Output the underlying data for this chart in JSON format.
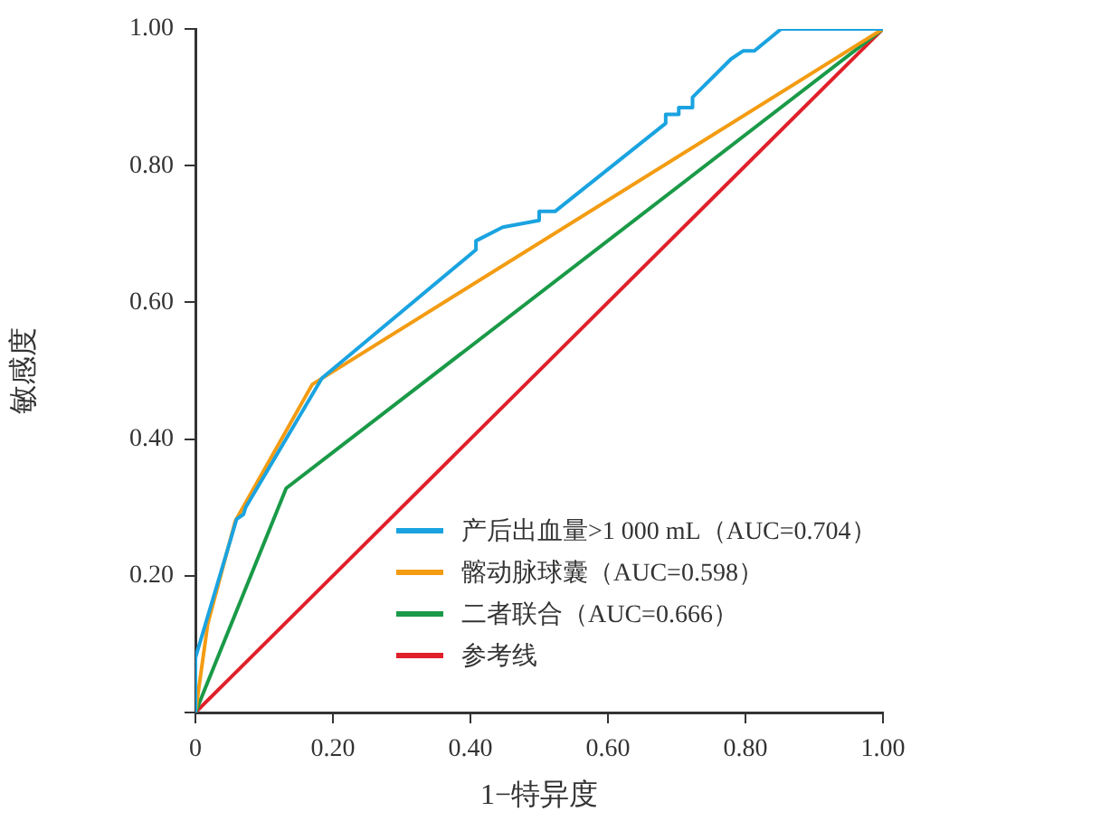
{
  "chart_data": {
    "type": "line",
    "xlabel": "1−特异度",
    "ylabel": "敏感度",
    "xlim": [
      0,
      1
    ],
    "ylim": [
      0,
      1
    ],
    "xticks": [
      {
        "value": 0,
        "label": "0"
      },
      {
        "value": 0.2,
        "label": "0.20"
      },
      {
        "value": 0.4,
        "label": "0.40"
      },
      {
        "value": 0.6,
        "label": "0.60"
      },
      {
        "value": 0.8,
        "label": "0.80"
      },
      {
        "value": 1,
        "label": "1.00"
      }
    ],
    "yticks": [
      {
        "value": 0,
        "label": null
      },
      {
        "value": 0.2,
        "label": "0.20"
      },
      {
        "value": 0.4,
        "label": "0.40"
      },
      {
        "value": 0.6,
        "label": "0.60"
      },
      {
        "value": 0.8,
        "label": "0.80"
      },
      {
        "value": 1,
        "label": "1.00"
      }
    ],
    "grid": false,
    "legend": "bottom right",
    "marker": "none",
    "line_style": "solid",
    "series": [
      {
        "name": "产后出血量>1 000 mL（AUC=0.704）",
        "color": "#1aa3e0",
        "x": [
          0,
          0,
          0.06,
          0.07,
          0.073,
          0.184,
          0.408,
          0.408,
          0.447,
          0.5,
          0.5,
          0.523,
          0.684,
          0.684,
          0.703,
          0.703,
          0.723,
          0.723,
          0.779,
          0.797,
          0.813,
          0.852,
          1
        ],
        "values": [
          0,
          0.08,
          0.283,
          0.29,
          0.3,
          0.489,
          0.677,
          0.69,
          0.71,
          0.72,
          0.733,
          0.733,
          0.862,
          0.875,
          0.875,
          0.885,
          0.885,
          0.9,
          0.956,
          0.968,
          0.968,
          1,
          1
        ]
      },
      {
        "name": "髂动脉球囊（AUC=0.598）",
        "color": "#f39c12",
        "x": [
          0,
          0.018,
          0.058,
          0.17,
          1
        ],
        "values": [
          0,
          0.13,
          0.28,
          0.48,
          1
        ]
      },
      {
        "name": "二者联合（AUC=0.666）",
        "color": "#1a9a48",
        "x": [
          0,
          0.132,
          1
        ],
        "values": [
          0,
          0.328,
          1
        ]
      },
      {
        "name": "参考线",
        "color": "#e0202a",
        "x": [
          0,
          1
        ],
        "values": [
          0,
          1
        ]
      }
    ]
  }
}
